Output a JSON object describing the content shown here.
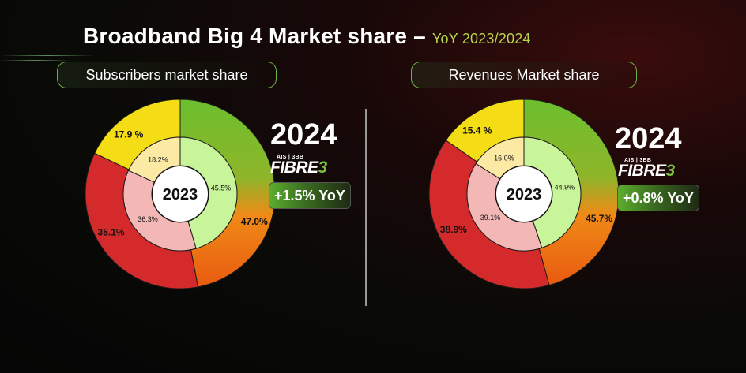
{
  "title": {
    "main": "Broadband Big 4 Market share –",
    "sub": "YoY 2023/2024"
  },
  "panels": [
    {
      "label": "Subscribers market share",
      "year_outer": "2024",
      "year_inner": "2023",
      "brand_top": "AIS | 3BB",
      "brand_word": "FIBRE",
      "brand_digit": "3",
      "yoy": "+1.5% YoY"
    },
    {
      "label": "Revenues Market share",
      "year_outer": "2024",
      "year_inner": "2023",
      "brand_top": "AIS | 3BB",
      "brand_word": "FIBRE",
      "brand_digit": "3",
      "yoy": "+0.8% YoY"
    }
  ],
  "chart_data": [
    {
      "type": "pie",
      "title": "Subscribers market share",
      "series": [
        {
          "name": "2024",
          "values": [
            47.0,
            35.1,
            17.9
          ],
          "labels": [
            "47.0%",
            "35.1%",
            "17.9 %"
          ]
        },
        {
          "name": "2023",
          "values": [
            45.5,
            36.3,
            18.2
          ],
          "labels": [
            "45.5%",
            "36.3%",
            "18.2%"
          ]
        }
      ],
      "colors": {
        "outer": [
          "#6cbf2e",
          "#d42a2c",
          "#f4dd14"
        ],
        "inner": [
          "#c8f59a",
          "#f3b8b5",
          "#fbe9a4"
        ]
      }
    },
    {
      "type": "pie",
      "title": "Revenues Market share",
      "series": [
        {
          "name": "2024",
          "values": [
            45.7,
            38.9,
            15.4
          ],
          "labels": [
            "45.7%",
            "38.9%",
            "15.4 %"
          ]
        },
        {
          "name": "2023",
          "values": [
            44.9,
            39.1,
            16.0
          ],
          "labels": [
            "44.9%",
            "39.1%",
            "16.0%"
          ]
        }
      ],
      "colors": {
        "outer": [
          "#6cbf2e",
          "#d42a2c",
          "#f4dd14"
        ],
        "inner": [
          "#c8f59a",
          "#f3b8b5",
          "#fbe9a4"
        ]
      }
    }
  ]
}
